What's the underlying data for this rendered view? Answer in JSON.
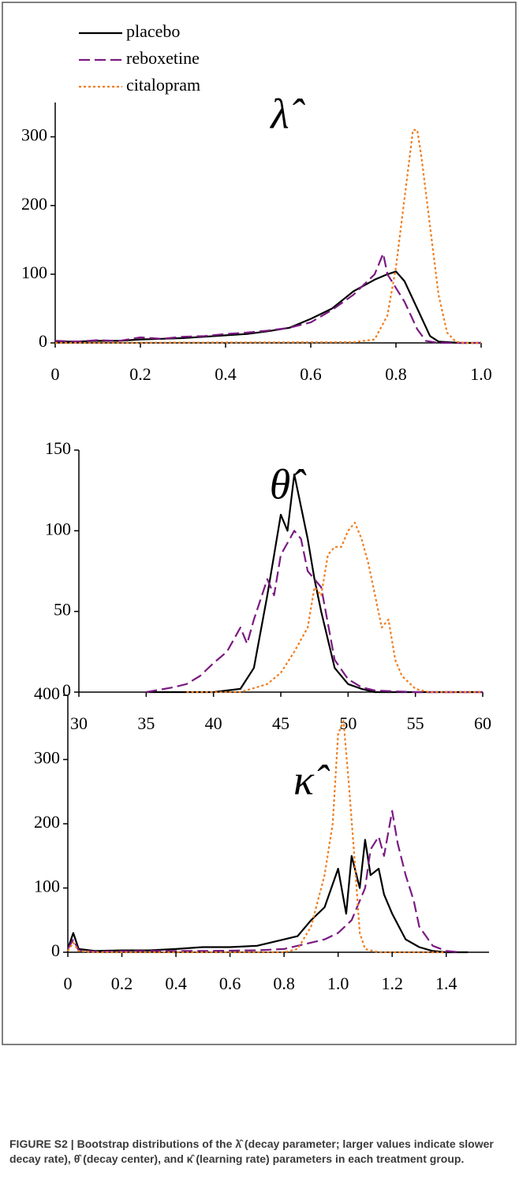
{
  "chart_data": [
    {
      "type": "line",
      "title": "λ̂",
      "legend": "upper left",
      "xlim": [
        0,
        1
      ],
      "xticks": [
        0,
        0.2,
        0.4,
        0.6,
        0.8,
        {
          "value": 1,
          "label": "1.0"
        }
      ],
      "ylim": [
        0,
        350
      ],
      "yticks": [
        0,
        100,
        200,
        300
      ],
      "series": [
        {
          "name": "placebo",
          "color": "#000000",
          "style": "solid",
          "x": [
            0,
            0.05,
            0.1,
            0.15,
            0.2,
            0.25,
            0.3,
            0.35,
            0.4,
            0.45,
            0.5,
            0.55,
            0.6,
            0.65,
            0.7,
            0.75,
            0.78,
            0.8,
            0.82,
            0.85,
            0.88,
            0.9,
            0.95,
            1.0
          ],
          "values": [
            2,
            2,
            3,
            3,
            5,
            6,
            7,
            9,
            11,
            13,
            17,
            22,
            35,
            50,
            75,
            92,
            100,
            104,
            90,
            50,
            10,
            2,
            0,
            0
          ]
        },
        {
          "name": "reboxetine",
          "color": "#7b1a82",
          "style": "dashed",
          "x": [
            0,
            0.05,
            0.1,
            0.15,
            0.2,
            0.25,
            0.3,
            0.35,
            0.4,
            0.45,
            0.5,
            0.55,
            0.6,
            0.65,
            0.7,
            0.75,
            0.77,
            0.78,
            0.8,
            0.82,
            0.85,
            0.87,
            0.9,
            1.0
          ],
          "values": [
            3,
            2,
            4,
            3,
            8,
            6,
            9,
            10,
            13,
            15,
            18,
            22,
            30,
            48,
            70,
            100,
            130,
            100,
            80,
            60,
            20,
            3,
            0,
            0
          ]
        },
        {
          "name": "citalopram",
          "color": "#f07d1e",
          "style": "dotted",
          "x": [
            0,
            0.7,
            0.75,
            0.78,
            0.8,
            0.82,
            0.84,
            0.85,
            0.86,
            0.88,
            0.9,
            0.92,
            0.94,
            0.96,
            1.0
          ],
          "values": [
            0,
            1,
            5,
            40,
            110,
            210,
            310,
            310,
            270,
            170,
            70,
            15,
            2,
            0,
            0
          ]
        }
      ]
    },
    {
      "type": "line",
      "title": "θ̂",
      "xlim": [
        30,
        60
      ],
      "xticks": [
        30,
        35,
        40,
        45,
        50,
        55,
        60
      ],
      "ylim": [
        0,
        150
      ],
      "yticks": [
        0,
        50,
        100,
        150
      ],
      "series": [
        {
          "name": "placebo",
          "color": "#000000",
          "style": "solid",
          "x": [
            35,
            40,
            42,
            43,
            44,
            44.5,
            45,
            45.5,
            46,
            46.5,
            47,
            47.5,
            48,
            49,
            50,
            51,
            52,
            55,
            60
          ],
          "values": [
            0,
            0,
            2,
            15,
            60,
            85,
            110,
            100,
            135,
            115,
            95,
            70,
            50,
            15,
            5,
            2,
            0,
            0,
            0
          ]
        },
        {
          "name": "reboxetine",
          "color": "#7b1a82",
          "style": "dashed",
          "x": [
            35,
            37,
            38,
            39,
            40,
            41,
            42,
            42.5,
            43,
            44,
            44.5,
            45,
            46,
            46.5,
            47,
            48,
            49,
            50,
            51,
            52,
            55,
            60
          ],
          "values": [
            0,
            3,
            5,
            10,
            18,
            25,
            40,
            30,
            45,
            70,
            60,
            85,
            100,
            95,
            75,
            65,
            20,
            8,
            3,
            1,
            0,
            0
          ]
        },
        {
          "name": "citalopram",
          "color": "#f07d1e",
          "style": "dotted",
          "x": [
            38,
            42,
            44,
            45,
            46,
            47,
            47.5,
            48,
            48.5,
            49,
            49.5,
            50,
            50.5,
            51,
            51.5,
            52,
            52.5,
            53,
            53.5,
            54,
            55,
            56,
            60
          ],
          "values": [
            0,
            0,
            5,
            12,
            25,
            40,
            65,
            60,
            85,
            90,
            90,
            100,
            105,
            95,
            80,
            60,
            40,
            45,
            20,
            10,
            2,
            0,
            0
          ]
        }
      ]
    },
    {
      "type": "line",
      "title": "κ̂",
      "xlim": [
        0,
        1.5
      ],
      "xticks": [
        0,
        0.2,
        0.4,
        0.6,
        0.8,
        {
          "value": 1,
          "label": "1.0"
        },
        1.2,
        1.4
      ],
      "ylim": [
        0,
        400
      ],
      "yticks": [
        0,
        100,
        200,
        300,
        400
      ],
      "series": [
        {
          "name": "placebo",
          "color": "#000000",
          "style": "solid",
          "x": [
            0,
            0.02,
            0.04,
            0.1,
            0.2,
            0.3,
            0.4,
            0.5,
            0.6,
            0.7,
            0.8,
            0.85,
            0.9,
            0.95,
            1.0,
            1.03,
            1.05,
            1.08,
            1.1,
            1.12,
            1.15,
            1.17,
            1.2,
            1.25,
            1.3,
            1.35,
            1.4,
            1.48
          ],
          "values": [
            5,
            30,
            5,
            2,
            3,
            3,
            5,
            8,
            8,
            10,
            20,
            25,
            50,
            70,
            130,
            60,
            150,
            100,
            175,
            120,
            130,
            90,
            60,
            20,
            8,
            2,
            0,
            0
          ]
        },
        {
          "name": "reboxetine",
          "color": "#7b1a82",
          "style": "dashed",
          "x": [
            0,
            0.02,
            0.04,
            0.1,
            0.3,
            0.5,
            0.7,
            0.8,
            0.9,
            0.95,
            1.0,
            1.05,
            1.1,
            1.12,
            1.15,
            1.17,
            1.2,
            1.22,
            1.25,
            1.28,
            1.3,
            1.35,
            1.4,
            1.45
          ],
          "values": [
            5,
            20,
            3,
            1,
            2,
            2,
            3,
            5,
            15,
            20,
            30,
            50,
            100,
            160,
            180,
            150,
            220,
            170,
            120,
            80,
            40,
            10,
            2,
            0
          ]
        },
        {
          "name": "citalopram",
          "color": "#f07d1e",
          "style": "dotted",
          "x": [
            0,
            0.02,
            0.04,
            0.1,
            0.5,
            0.8,
            0.85,
            0.9,
            0.95,
            0.98,
            1.0,
            1.02,
            1.04,
            1.06,
            1.08,
            1.1,
            1.15,
            1.4
          ],
          "values": [
            2,
            15,
            2,
            0,
            0,
            0,
            5,
            40,
            120,
            200,
            340,
            360,
            260,
            150,
            30,
            5,
            0,
            0
          ]
        }
      ]
    }
  ],
  "caption": "FIGURE S2 | Bootstrap distributions of the λ̂ (decay parameter; larger values indicate slower decay rate), θ̂ (decay center), and κ̂ (learning rate) parameters in each treatment group."
}
